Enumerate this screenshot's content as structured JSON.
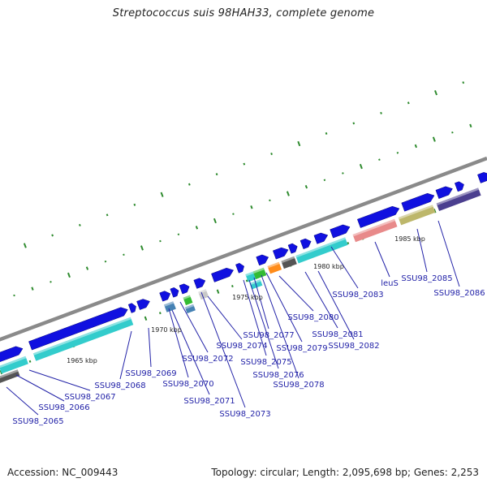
{
  "title": "Streptococcus suis 98HAH33, complete genome",
  "accession": "Accession: NC_009443",
  "summary": "Topology: circular; Length: 2,095,698 bp; Genes: 2,253",
  "kbp_labels": [
    "1965 kbp",
    "1970 kbp",
    "1975 kbp",
    "1980 kbp",
    "1985 kbp"
  ],
  "gene_labels": [
    "SSU98_2065",
    "SSU98_2066",
    "SSU98_2067",
    "SSU98_2068",
    "SSU98_2069",
    "SSU98_2070",
    "SSU98_2071",
    "SSU98_2072",
    "SSU98_2073",
    "SSU98_2074",
    "SSU98_2075",
    "SSU98_2076",
    "SSU98_2077",
    "SSU98_2078",
    "SSU98_2079",
    "SSU98_2080",
    "SSU98_2081",
    "SSU98_2082",
    "SSU98_2083",
    "leuS",
    "SSU98_2085",
    "SSU98_2086"
  ],
  "colors": {
    "cds": "#1010e0",
    "backbone": "#8a8a8a",
    "tick": "#2e8b2e",
    "label": "#2323a8",
    "cyan": "#33cccc",
    "dark_gray": "#555555",
    "light_gray": "#c8c8c8",
    "orange": "#ff8c1a",
    "red": "#ee0000",
    "pink": "#e88a8a",
    "olive": "#bdb76b",
    "purple": "#4b3f8f",
    "steel": "#4682b4",
    "green": "#33bb33"
  }
}
